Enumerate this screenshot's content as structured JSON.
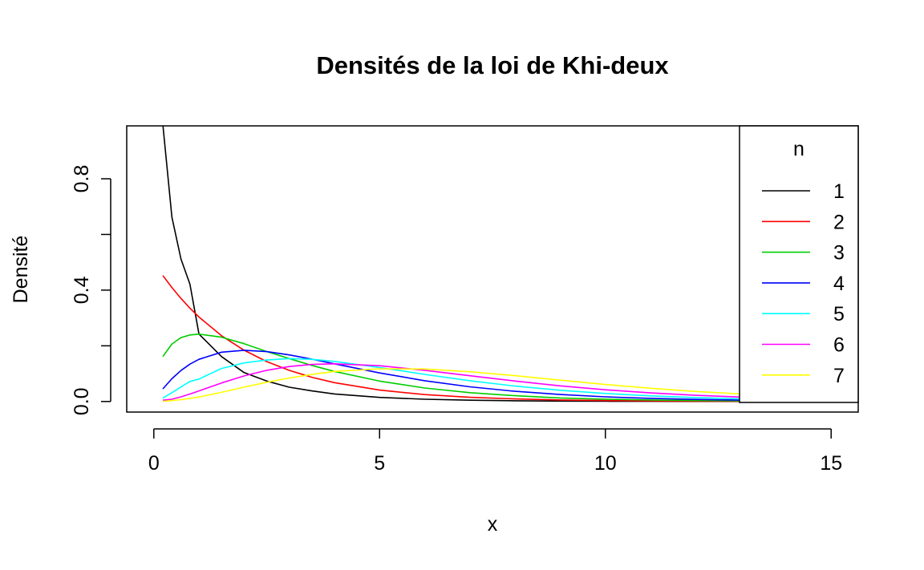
{
  "chart_data": {
    "type": "line",
    "title": "Densités de la loi de Khi-deux",
    "xlabel": "x",
    "ylabel": "Densité",
    "xlim": [
      -0.6,
      15.6
    ],
    "ylim": [
      -0.038,
      0.99
    ],
    "x_ticks": [
      0,
      5,
      10,
      15
    ],
    "x_tick_labels": [
      "0",
      "5",
      "10",
      "15"
    ],
    "y_ticks": [
      0.0,
      0.2,
      0.4,
      0.6,
      0.8
    ],
    "y_tick_labels": [
      "0.0",
      "",
      "0.4",
      "",
      "0.8"
    ],
    "grid": false,
    "legend": {
      "title": "n",
      "placement": "right"
    },
    "x_sampled": [
      0.2,
      0.4,
      0.6,
      0.8,
      1,
      1.5,
      2,
      2.5,
      3,
      3.5,
      4,
      5,
      6,
      7,
      8,
      9,
      10,
      11,
      12,
      13
    ],
    "series": [
      {
        "name": "1",
        "color": "#000000",
        "values": [
          0.9957,
          0.6626,
          0.5119,
          0.4212,
          0.242,
          0.1613,
          0.1038,
          0.0733,
          0.0514,
          0.0381,
          0.027,
          0.0146,
          0.0081,
          0.0045,
          0.0025,
          0.0015,
          0.0009,
          0.0005,
          0.0003,
          0.0002
        ]
      },
      {
        "name": "2",
        "color": "#ff0000",
        "values": [
          0.4524,
          0.4094,
          0.3704,
          0.3352,
          0.3033,
          0.2362,
          0.1839,
          0.1433,
          0.1116,
          0.0869,
          0.0677,
          0.041,
          0.0249,
          0.0151,
          0.0092,
          0.0056,
          0.0034,
          0.002,
          0.0012,
          0.0008
        ]
      },
      {
        "name": "3",
        "color": "#00cd00",
        "values": [
          0.1614,
          0.2066,
          0.2295,
          0.2391,
          0.242,
          0.2309,
          0.2076,
          0.1795,
          0.1542,
          0.1295,
          0.108,
          0.0732,
          0.0483,
          0.0316,
          0.0206,
          0.0128,
          0.0085,
          0.0055,
          0.0035,
          0.0022
        ]
      },
      {
        "name": "4",
        "color": "#0000ff",
        "values": [
          0.0452,
          0.0819,
          0.1111,
          0.1341,
          0.1516,
          0.1771,
          0.1839,
          0.1791,
          0.1673,
          0.1521,
          0.1353,
          0.1026,
          0.0747,
          0.0528,
          0.0366,
          0.025,
          0.0168,
          0.0112,
          0.0074,
          0.0049
        ]
      },
      {
        "name": "5",
        "color": "#00ffff",
        "values": [
          0.012,
          0.0317,
          0.052,
          0.072,
          0.0807,
          0.1187,
          0.1384,
          0.149,
          0.1542,
          0.1514,
          0.144,
          0.122,
          0.0973,
          0.0746,
          0.0554,
          0.0402,
          0.0289,
          0.0202,
          0.014,
          0.0096
        ]
      },
      {
        "name": "6",
        "color": "#ff00ff",
        "values": [
          0.0045,
          0.0082,
          0.0167,
          0.0268,
          0.0379,
          0.0664,
          0.092,
          0.112,
          0.1255,
          0.1331,
          0.1353,
          0.1283,
          0.112,
          0.0925,
          0.0733,
          0.0562,
          0.0421,
          0.0309,
          0.0223,
          0.0159
        ]
      },
      {
        "name": "7",
        "color": "#ffff00",
        "values": [
          0.0007,
          0.0032,
          0.0067,
          0.0112,
          0.0161,
          0.0328,
          0.0515,
          0.0691,
          0.0845,
          0.097,
          0.108,
          0.1175,
          0.1167,
          0.1069,
          0.0926,
          0.0765,
          0.0611,
          0.0474,
          0.0361,
          0.027
        ]
      }
    ]
  }
}
